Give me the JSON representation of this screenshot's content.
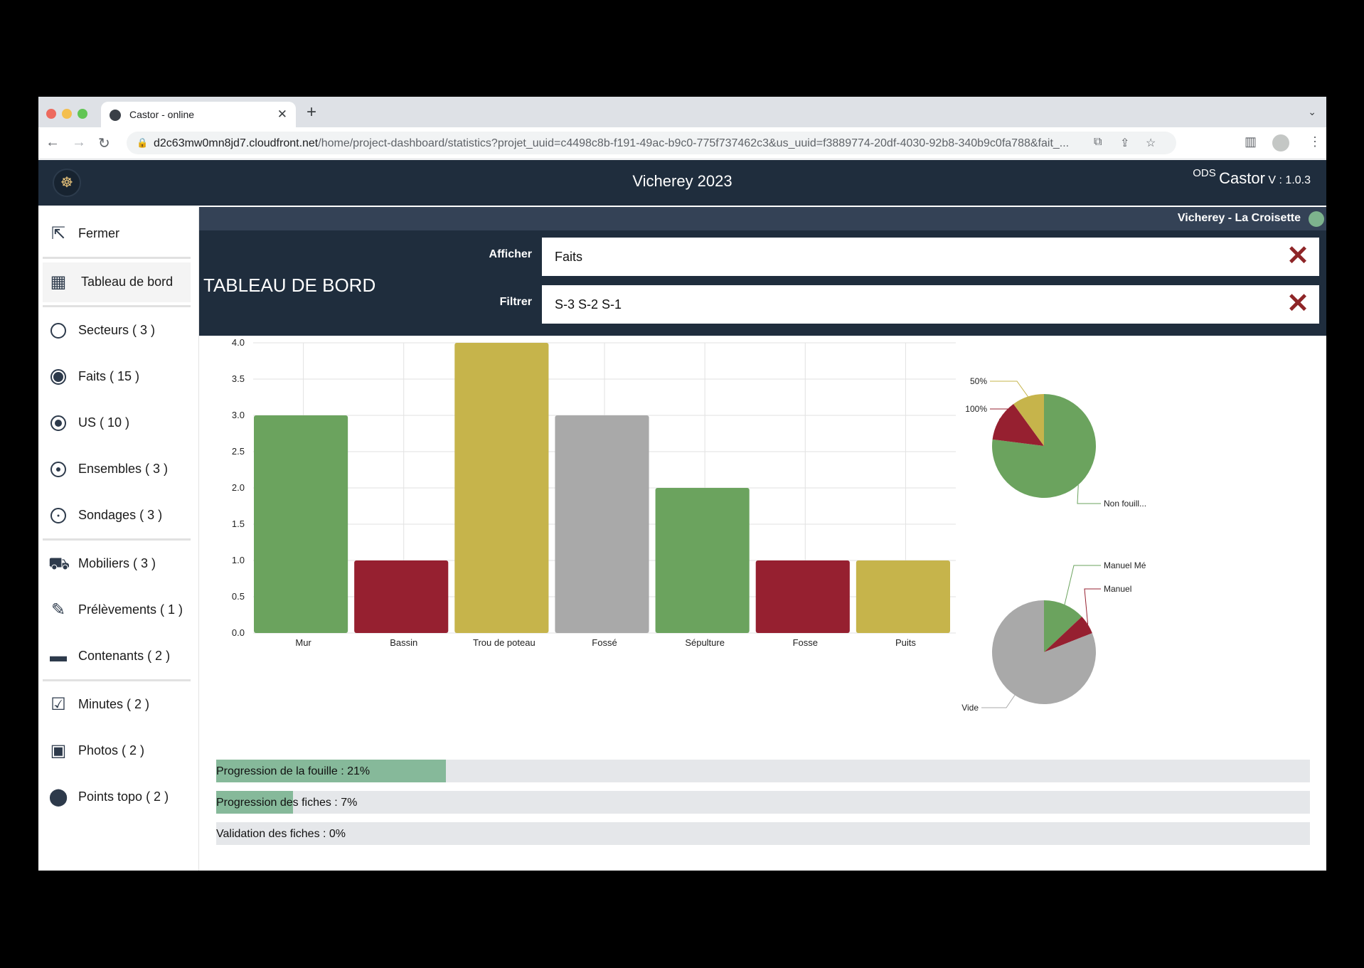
{
  "browser": {
    "tab_title": "Castor - online",
    "url_host": "d2c63mw0mn8jd7.cloudfront.net",
    "url_path": "/home/project-dashboard/statistics?projet_uuid=c4498c8b-f191-49ac-b9c0-775f737462c3&us_uuid=f3889774-20df-4030-92b8-340b9c0fa788&fait_..."
  },
  "header": {
    "project_title": "Vicherey 2023",
    "brand_ods": "ODS",
    "brand_name": "Castor",
    "brand_version": "V : 1.0.3",
    "site_name": "Vicherey - La Croisette"
  },
  "page": {
    "title": "TABLEAU DE BORD",
    "afficher_label": "Afficher",
    "afficher_value": "Faits",
    "filtrer_label": "Filtrer",
    "filtrer_value": "S-3 S-2 S-1"
  },
  "sidebar": {
    "items": [
      {
        "label": "Fermer",
        "icon": "close-window-icon"
      },
      {
        "label": "Tableau de bord",
        "icon": "dashboard-icon"
      },
      {
        "label": "Secteurs ( 3 )",
        "icon": "sector-icon"
      },
      {
        "label": "Faits ( 15 )",
        "icon": "fact-icon"
      },
      {
        "label": "US ( 10 )",
        "icon": "us-icon"
      },
      {
        "label": "Ensembles ( 3 )",
        "icon": "ensemble-icon"
      },
      {
        "label": "Sondages ( 3 )",
        "icon": "sondage-icon"
      },
      {
        "label": "Mobiliers ( 3 )",
        "icon": "mobilier-icon"
      },
      {
        "label": "Prélèvements ( 1 )",
        "icon": "pipette-icon"
      },
      {
        "label": "Contenants ( 2 )",
        "icon": "box-icon"
      },
      {
        "label": "Minutes ( 2 )",
        "icon": "minute-icon"
      },
      {
        "label": "Photos ( 2 )",
        "icon": "camera-icon"
      },
      {
        "label": "Points topo ( 2 )",
        "icon": "location-pin-icon"
      }
    ]
  },
  "colors": {
    "green": "#6ba35e",
    "red": "#962030",
    "yellow": "#c6b44b",
    "grey": "#a9a9a9",
    "header": "#1f2d3d",
    "progress": "#86b99a"
  },
  "chart_data": [
    {
      "type": "bar",
      "categories": [
        "Mur",
        "Bassin",
        "Trou de poteau",
        "Fossé",
        "Sépulture",
        "Fosse",
        "Puits"
      ],
      "values": [
        3,
        1,
        4,
        3,
        2,
        1,
        1
      ],
      "bar_colors": [
        "#6ba35e",
        "#962030",
        "#c6b44b",
        "#a9a9a9",
        "#6ba35e",
        "#962030",
        "#c6b44b"
      ],
      "ylim": [
        0,
        4
      ],
      "yticks": [
        "0.0",
        "0.5",
        "1.0",
        "1.5",
        "2.0",
        "2.5",
        "3.0",
        "3.5",
        "4.0"
      ],
      "grid": true
    },
    {
      "type": "pie",
      "labels": [
        "Non fouill...",
        "100%",
        "50%"
      ],
      "values": [
        77,
        13,
        10
      ],
      "colors": [
        "#6ba35e",
        "#962030",
        "#c6b44b"
      ]
    },
    {
      "type": "pie",
      "labels": [
        "Manuel Mé",
        "Manuel",
        "Vide"
      ],
      "values": [
        13,
        6,
        81
      ],
      "colors": [
        "#6ba35e",
        "#962030",
        "#a9a9a9"
      ]
    }
  ],
  "progress": [
    {
      "label": "Progression de la fouille : 21%",
      "value": 21
    },
    {
      "label": "Progression des fiches : 7%",
      "value": 7
    },
    {
      "label": "Validation des fiches : 0%",
      "value": 0
    }
  ]
}
